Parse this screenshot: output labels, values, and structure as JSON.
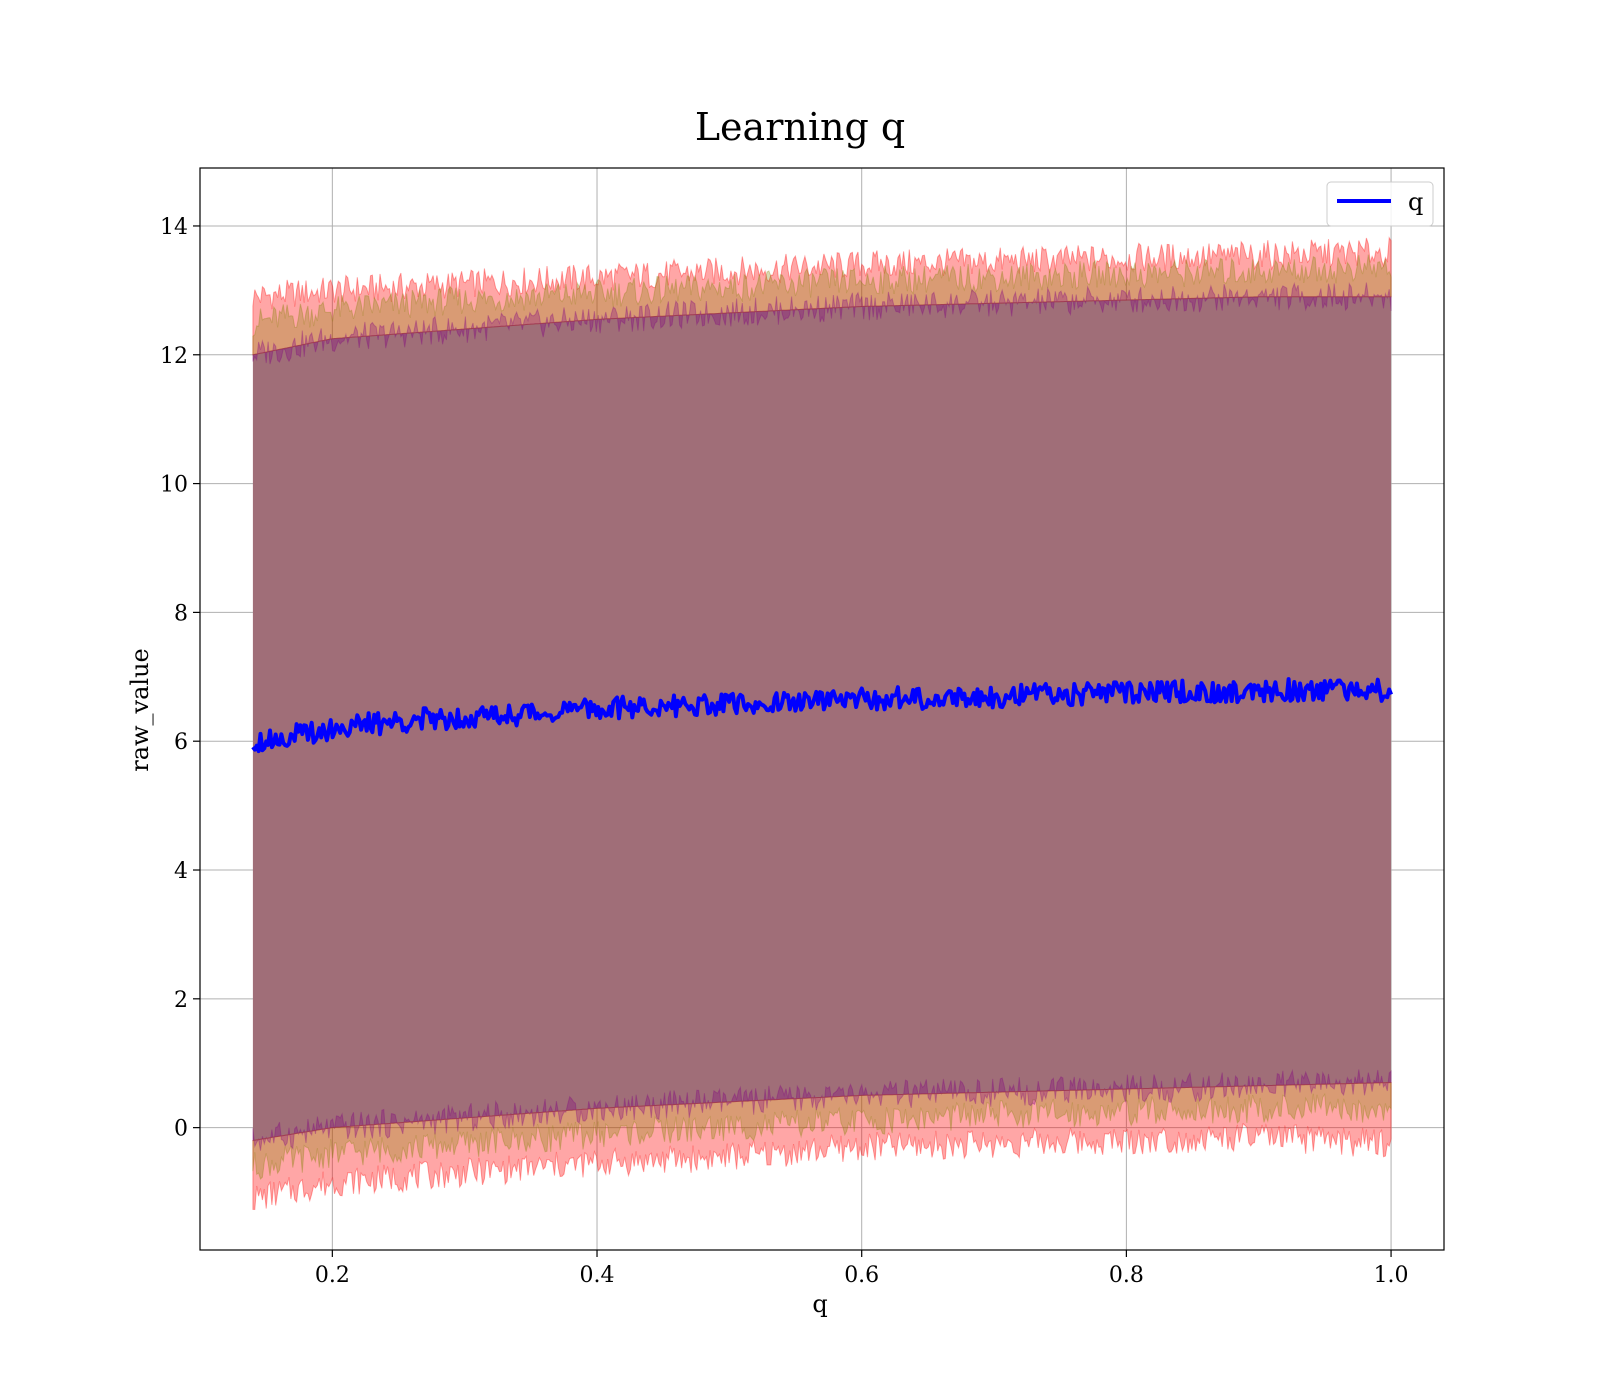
{
  "chart_data": {
    "type": "line",
    "title": "Learning q",
    "xlabel": "q",
    "ylabel": "raw_value",
    "xlim": [
      0.1,
      1.04
    ],
    "ylim": [
      -1.9,
      14.9
    ],
    "grid": true,
    "legend_placement": "top-right",
    "x_ticks": [
      0.2,
      0.4,
      0.6,
      0.8,
      1.0
    ],
    "x_tick_labels": [
      "0.2",
      "0.4",
      "0.6",
      "0.8",
      "1.0"
    ],
    "y_ticks": [
      0,
      2,
      4,
      6,
      8,
      10,
      12,
      14
    ],
    "y_tick_labels": [
      "0",
      "2",
      "4",
      "6",
      "8",
      "10",
      "12",
      "14"
    ],
    "series": [
      {
        "name": "q",
        "color": "#0000ff",
        "x": [
          0.14,
          0.16,
          0.18,
          0.2,
          0.22,
          0.24,
          0.26,
          0.28,
          0.3,
          0.32,
          0.34,
          0.36,
          0.38,
          0.4,
          0.42,
          0.44,
          0.46,
          0.48,
          0.5,
          0.52,
          0.54,
          0.56,
          0.58,
          0.6,
          0.62,
          0.64,
          0.66,
          0.68,
          0.7,
          0.72,
          0.74,
          0.76,
          0.78,
          0.8,
          0.82,
          0.84,
          0.86,
          0.88,
          0.9,
          0.92,
          0.94,
          0.96,
          0.98,
          1.0
        ],
        "y": [
          6.0,
          6.05,
          6.12,
          6.2,
          6.25,
          6.28,
          6.33,
          6.35,
          6.38,
          6.4,
          6.42,
          6.45,
          6.48,
          6.5,
          6.52,
          6.53,
          6.55,
          6.56,
          6.57,
          6.58,
          6.6,
          6.62,
          6.63,
          6.65,
          6.66,
          6.67,
          6.68,
          6.69,
          6.7,
          6.71,
          6.72,
          6.73,
          6.74,
          6.75,
          6.76,
          6.77,
          6.77,
          6.78,
          6.78,
          6.79,
          6.79,
          6.8,
          6.8,
          6.8
        ]
      }
    ],
    "bands": [
      {
        "description": "outer band",
        "color": "#ff0000",
        "opacity": 0.35,
        "x": [
          0.14,
          0.2,
          0.3,
          0.4,
          0.5,
          0.6,
          0.7,
          0.8,
          0.9,
          1.0
        ],
        "upper": [
          12.9,
          13.0,
          13.1,
          13.2,
          13.3,
          13.4,
          13.45,
          13.5,
          13.55,
          13.6
        ],
        "lower": [
          -1.1,
          -0.85,
          -0.7,
          -0.55,
          -0.45,
          -0.3,
          -0.25,
          -0.2,
          -0.15,
          -0.25
        ]
      },
      {
        "description": "middle band",
        "color": "#808000",
        "opacity": 0.3,
        "x": [
          0.14,
          0.2,
          0.3,
          0.4,
          0.5,
          0.6,
          0.7,
          0.8,
          0.9,
          1.0
        ],
        "upper": [
          12.5,
          12.7,
          12.85,
          12.95,
          13.05,
          13.15,
          13.2,
          13.25,
          13.3,
          13.35
        ],
        "lower": [
          -0.6,
          -0.4,
          -0.25,
          -0.1,
          0.0,
          0.1,
          0.2,
          0.25,
          0.3,
          0.3
        ]
      },
      {
        "description": "inner band",
        "color": "#800080",
        "opacity": 0.3,
        "x": [
          0.14,
          0.2,
          0.3,
          0.4,
          0.5,
          0.6,
          0.7,
          0.8,
          0.9,
          1.0
        ],
        "upper": [
          12.0,
          12.25,
          12.4,
          12.55,
          12.65,
          12.75,
          12.8,
          12.85,
          12.9,
          12.9
        ],
        "lower": [
          -0.2,
          0.0,
          0.15,
          0.3,
          0.4,
          0.5,
          0.55,
          0.6,
          0.65,
          0.7
        ]
      }
    ],
    "fill_color": "#a06e78"
  }
}
